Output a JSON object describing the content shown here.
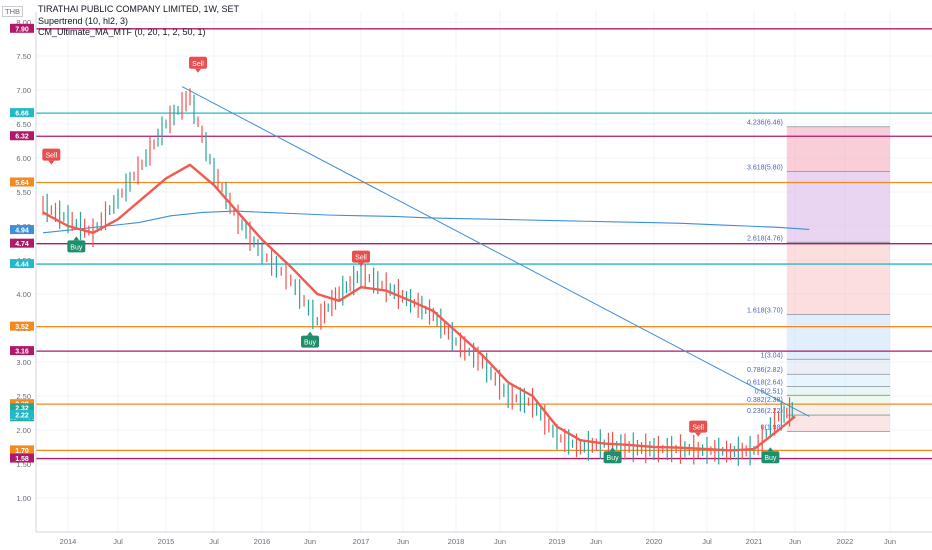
{
  "legend": {
    "title": "TIRATHAI PUBLIC COMPANY LIMITED, 1W, SET",
    "ind1": "Supertrend (10, hl2, 3)",
    "ind2": "CM_Ultimate_MA_MTF (0, 20, 1, 2, 50, 1)"
  },
  "currency_label": "THB",
  "colors": {
    "bg": "#ffffff",
    "grid": "#f0f3fa",
    "axis_text": "#6a6d78",
    "up": "#26a69a",
    "down": "#ef5350",
    "ma": "#f05b50",
    "ma_up": "#7ed67a",
    "trend": "#3d8fd8",
    "cyan": "#22b8c8",
    "orange": "#f28a20",
    "purple": "#b0186a",
    "buy": "#1f8f6b",
    "sell": "#e84f4f"
  },
  "chart_data": {
    "type": "line",
    "xlabel": "",
    "ylabel": "",
    "ylim": [
      0.5,
      8.0
    ],
    "grid": true,
    "x_ticks": [
      "2014",
      "Jul",
      "2015",
      "Jul",
      "2016",
      "Jun",
      "2017",
      "Jun",
      "2018",
      "Jun",
      "2019",
      "Jun",
      "2020",
      "Jul",
      "2021",
      "Jun",
      "2022",
      "Jun"
    ],
    "y_ticks": [
      1.0,
      1.5,
      2.0,
      2.5,
      3.0,
      3.5,
      4.0,
      4.5,
      5.0,
      5.5,
      6.0,
      6.5,
      7.0,
      7.5,
      8.0
    ],
    "price_x": [
      "2013-10",
      "2014-01",
      "2014-04",
      "2014-07",
      "2014-10",
      "2015-01",
      "2015-04",
      "2015-07",
      "2015-10",
      "2016-01",
      "2016-04",
      "2016-07",
      "2016-10",
      "2017-01",
      "2017-04",
      "2017-07",
      "2017-10",
      "2018-01",
      "2018-04",
      "2018-07",
      "2018-10",
      "2019-01",
      "2019-04",
      "2019-07",
      "2019-10",
      "2020-01",
      "2020-04",
      "2020-07",
      "2020-10",
      "2021-01",
      "2021-04",
      "2021-06"
    ],
    "price_y": [
      5.3,
      5.1,
      4.9,
      5.4,
      5.9,
      6.5,
      6.9,
      5.8,
      5.1,
      4.6,
      4.2,
      3.6,
      4.0,
      4.3,
      4.1,
      3.9,
      3.7,
      3.3,
      3.0,
      2.5,
      2.4,
      1.9,
      1.75,
      1.8,
      1.75,
      1.72,
      1.72,
      1.7,
      1.68,
      1.7,
      2.2,
      2.3
    ],
    "ma_y": [
      5.2,
      5.0,
      4.9,
      5.1,
      5.4,
      5.7,
      5.9,
      5.6,
      5.2,
      4.8,
      4.4,
      4.0,
      3.9,
      4.1,
      4.05,
      3.9,
      3.75,
      3.45,
      3.1,
      2.7,
      2.5,
      2.05,
      1.85,
      1.8,
      1.78,
      1.75,
      1.74,
      1.72,
      1.7,
      1.72,
      2.0,
      2.2
    ],
    "blue_ma_y": [
      4.9,
      4.95,
      5.0,
      5.05,
      5.15,
      5.2,
      5.22,
      5.2,
      5.18,
      5.16,
      5.15,
      5.14,
      5.12,
      5.11,
      5.1,
      5.09,
      5.08,
      5.07,
      5.06,
      5.05,
      5.04,
      5.02,
      5.0,
      4.98,
      4.95
    ],
    "trendline": {
      "from": [
        "2015-03",
        7.05
      ],
      "to": [
        "2021-08",
        2.2
      ]
    },
    "signals": [
      {
        "label": "Sell",
        "x": "2013-11",
        "y": 6.05
      },
      {
        "label": "Buy",
        "x": "2014-02",
        "y": 4.7
      },
      {
        "label": "Sell",
        "x": "2015-05",
        "y": 7.4
      },
      {
        "label": "Buy",
        "x": "2016-06",
        "y": 3.3
      },
      {
        "label": "Sell",
        "x": "2017-01",
        "y": 4.55
      },
      {
        "label": "Buy",
        "x": "2019-08",
        "y": 1.6
      },
      {
        "label": "Sell",
        "x": "2020-06",
        "y": 2.05
      },
      {
        "label": "Buy",
        "x": "2021-03",
        "y": 1.6
      }
    ],
    "hlines": [
      {
        "value": 7.9,
        "label": "7.90",
        "color": "purple"
      },
      {
        "value": 6.66,
        "label": "6.66",
        "color": "cyan"
      },
      {
        "value": 6.32,
        "label": "6.32",
        "color": "purple"
      },
      {
        "value": 5.64,
        "label": "5.64",
        "color": "orange"
      },
      {
        "value": 4.74,
        "label": "4.74",
        "color": "purple"
      },
      {
        "value": 4.44,
        "label": "4.44",
        "color": "cyan"
      },
      {
        "value": 3.52,
        "label": "3.52",
        "color": "orange"
      },
      {
        "value": 3.16,
        "label": "3.16",
        "color": "purple"
      },
      {
        "value": 2.38,
        "label": "2.38",
        "color": "orange"
      },
      {
        "value": 1.7,
        "label": "1.70",
        "color": "orange"
      },
      {
        "value": 1.58,
        "label": "1.58",
        "color": "purple"
      }
    ],
    "extra_axis_labels": [
      {
        "value": 4.94,
        "label": "4.94",
        "color": "trend"
      },
      {
        "value": 2.32,
        "label": "2.32",
        "color": "up",
        "sub": "22:40:38"
      },
      {
        "value": 2.22,
        "label": "2.22",
        "color": "cyan"
      }
    ],
    "fib": {
      "x_start": "2021-05",
      "x_end": "2022-06",
      "levels": [
        {
          "value": 6.46,
          "label": "4.236(6.46)"
        },
        {
          "value": 5.8,
          "label": "3.618(5.80)"
        },
        {
          "value": 4.76,
          "label": "2.618(4.76)"
        },
        {
          "value": 3.7,
          "label": "1.618(3.70)"
        },
        {
          "value": 3.04,
          "label": "1(3.04)"
        },
        {
          "value": 2.82,
          "label": "0.786(2.82)"
        },
        {
          "value": 2.64,
          "label": "0.618(2.64)"
        },
        {
          "value": 2.51,
          "label": "0.5(2.51)"
        },
        {
          "value": 2.38,
          "label": "0.382(2.38)"
        },
        {
          "value": 2.22,
          "label": "0.236(2.22)"
        },
        {
          "value": 1.98,
          "label": "0(1.98)"
        }
      ]
    }
  }
}
